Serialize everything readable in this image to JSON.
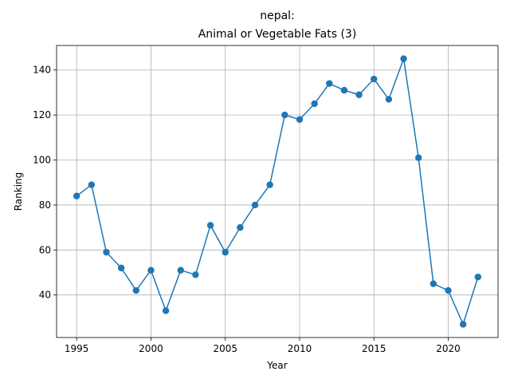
{
  "chart_data": {
    "type": "line",
    "title_line1": "nepal:",
    "title_line2": "Animal or Vegetable Fats (3)",
    "xlabel": "Year",
    "ylabel": "Ranking",
    "xlim": [
      1993.65,
      2023.35
    ],
    "ylim": [
      21.1,
      150.9
    ],
    "xticks": [
      1995,
      2000,
      2005,
      2010,
      2015,
      2020
    ],
    "yticks": [
      40,
      60,
      80,
      100,
      120,
      140
    ],
    "grid": true,
    "color": "#1f77b4",
    "x": [
      1995,
      1996,
      1997,
      1998,
      1999,
      2000,
      2001,
      2002,
      2003,
      2004,
      2005,
      2006,
      2007,
      2008,
      2009,
      2010,
      2011,
      2012,
      2013,
      2014,
      2015,
      2016,
      2017,
      2018,
      2019,
      2020,
      2021,
      2022
    ],
    "y": [
      84,
      89,
      59,
      52,
      42,
      51,
      33,
      51,
      49,
      71,
      59,
      70,
      80,
      89,
      120,
      118,
      125,
      134,
      131,
      129,
      136,
      127,
      145,
      101,
      45,
      42,
      27,
      48
    ]
  }
}
